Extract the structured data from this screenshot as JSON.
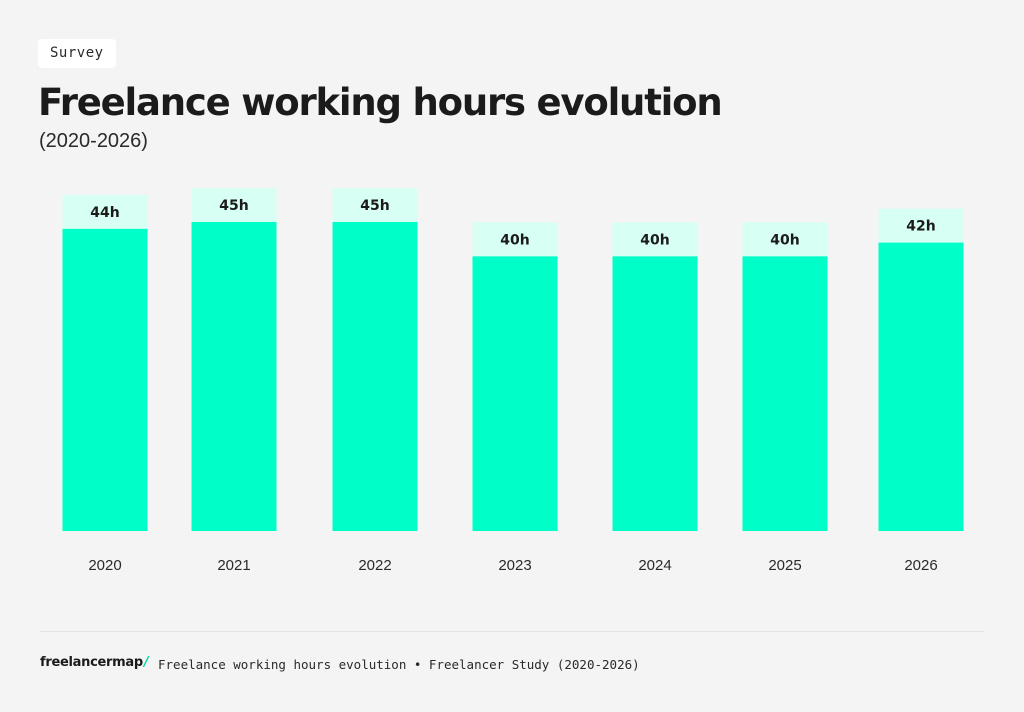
{
  "header": {
    "badge": "Survey",
    "title": "Freelance working hours evolution",
    "subtitle": "(2020-2026)"
  },
  "footer": {
    "brand": "freelancermap",
    "brand_mark": "/",
    "caption": "Freelance working hours evolution • Freelancer Study (2020-2026)"
  },
  "colors": {
    "bar": "#00ffc8",
    "label_bg": "#d7fff3",
    "background": "#f4f4f4"
  },
  "chart_data": {
    "type": "bar",
    "categories": [
      "2020",
      "2021",
      "2022",
      "2023",
      "2024",
      "2025",
      "2026"
    ],
    "values": [
      44,
      45,
      45,
      40,
      40,
      40,
      42
    ],
    "data_labels": [
      "44h",
      "45h",
      "45h",
      "40h",
      "40h",
      "40h",
      "42h"
    ],
    "unit": "h",
    "title": "Freelance working hours evolution",
    "subtitle": "(2020-2026)",
    "xlabel": "",
    "ylabel": "",
    "grid": false,
    "legend": "none"
  }
}
